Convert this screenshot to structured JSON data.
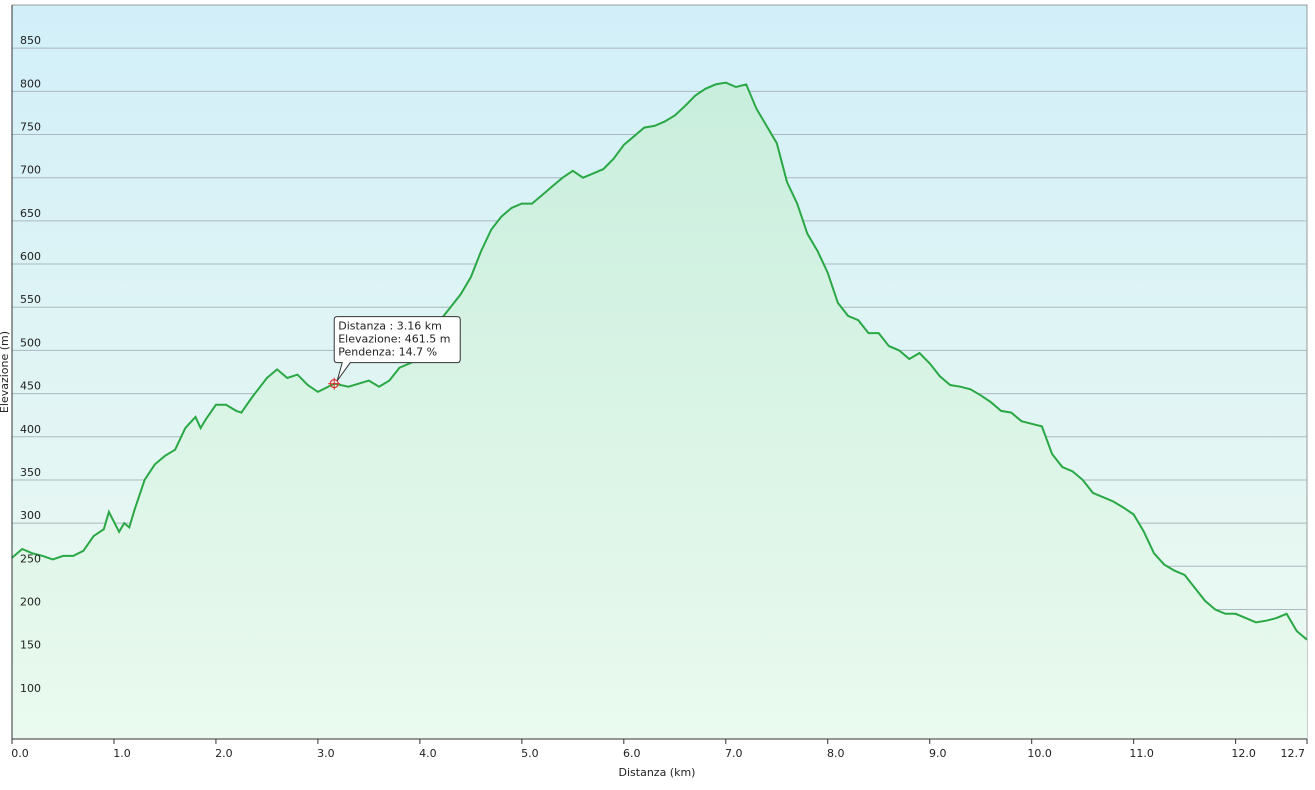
{
  "chart_data": {
    "type": "area",
    "x_label": "Distanza  (km)",
    "y_label": "Elevazione (m)",
    "color": "#2aa845",
    "grid": true,
    "x": [
      0.0,
      0.1,
      0.2,
      0.3,
      0.4,
      0.5,
      0.6,
      0.7,
      0.8,
      0.9,
      0.95,
      1.05,
      1.1,
      1.15,
      1.2,
      1.3,
      1.4,
      1.5,
      1.6,
      1.7,
      1.8,
      1.85,
      1.9,
      2.0,
      2.1,
      2.2,
      2.25,
      2.35,
      2.5,
      2.6,
      2.7,
      2.8,
      2.9,
      3.0,
      3.16,
      3.3,
      3.5,
      3.6,
      3.7,
      3.8,
      4.0,
      4.1,
      4.2,
      4.3,
      4.4,
      4.5,
      4.6,
      4.7,
      4.8,
      4.9,
      5.0,
      5.1,
      5.2,
      5.3,
      5.4,
      5.5,
      5.6,
      5.7,
      5.8,
      5.9,
      6.0,
      6.1,
      6.2,
      6.3,
      6.4,
      6.5,
      6.6,
      6.7,
      6.8,
      6.9,
      7.0,
      7.1,
      7.2,
      7.3,
      7.4,
      7.5,
      7.6,
      7.7,
      7.8,
      7.9,
      8.0,
      8.1,
      8.2,
      8.3,
      8.4,
      8.5,
      8.6,
      8.7,
      8.8,
      8.9,
      9.0,
      9.1,
      9.2,
      9.3,
      9.4,
      9.5,
      9.6,
      9.7,
      9.8,
      9.9,
      10.0,
      10.1,
      10.2,
      10.3,
      10.4,
      10.5,
      10.6,
      10.7,
      10.8,
      10.9,
      11.0,
      11.1,
      11.2,
      11.3,
      11.4,
      11.5,
      11.6,
      11.7,
      11.8,
      11.9,
      12.0,
      12.1,
      12.2,
      12.3,
      12.4,
      12.5,
      12.6,
      12.7
    ],
    "values": [
      260,
      270,
      265,
      262,
      258,
      262,
      262,
      268,
      285,
      293,
      313,
      290,
      300,
      295,
      315,
      350,
      368,
      378,
      385,
      410,
      423,
      410,
      420,
      437,
      437,
      430,
      428,
      445,
      468,
      478,
      468,
      472,
      460,
      452,
      461.5,
      458,
      465,
      458,
      465,
      480,
      490,
      510,
      535,
      550,
      565,
      585,
      615,
      640,
      655,
      665,
      670,
      670,
      680,
      690,
      700,
      708,
      700,
      705,
      710,
      722,
      738,
      748,
      758,
      760,
      765,
      772,
      783,
      795,
      803,
      808,
      810,
      805,
      808,
      780,
      760,
      740,
      695,
      670,
      635,
      615,
      590,
      555,
      540,
      535,
      520,
      520,
      505,
      500,
      490,
      497,
      485,
      470,
      460,
      458,
      455,
      448,
      440,
      430,
      428,
      418,
      415,
      412,
      380,
      365,
      360,
      350,
      335,
      330,
      325,
      318,
      310,
      290,
      265,
      252,
      245,
      240,
      225,
      210,
      200,
      195,
      195,
      190,
      185,
      187,
      190,
      195,
      175,
      165
    ],
    "xlim": [
      0,
      12.7
    ],
    "ylim": [
      50,
      900
    ],
    "xticks": [
      {
        "value": 0,
        "label": "0.0"
      },
      {
        "value": 1,
        "label": "1.0"
      },
      {
        "value": 2,
        "label": "2.0"
      },
      {
        "value": 3,
        "label": "3.0"
      },
      {
        "value": 4,
        "label": "4.0"
      },
      {
        "value": 5,
        "label": "5.0"
      },
      {
        "value": 6,
        "label": "6.0"
      },
      {
        "value": 7,
        "label": "7.0"
      },
      {
        "value": 8,
        "label": "8.0"
      },
      {
        "value": 9,
        "label": "9.0"
      },
      {
        "value": 10,
        "label": "10.0"
      },
      {
        "value": 11,
        "label": "11.0"
      },
      {
        "value": 12,
        "label": "12.0"
      },
      12.7
    ],
    "yticks": [
      100,
      150,
      200,
      250,
      300,
      350,
      400,
      450,
      500,
      550,
      600,
      650,
      700,
      750,
      800,
      850
    ],
    "tooltip": {
      "x": 3.16,
      "y": 461.5,
      "lines": [
        "Distanza : 3.16 km",
        "Elevazione: 461.5 m",
        "Pendenza: 14.7 %"
      ]
    }
  }
}
